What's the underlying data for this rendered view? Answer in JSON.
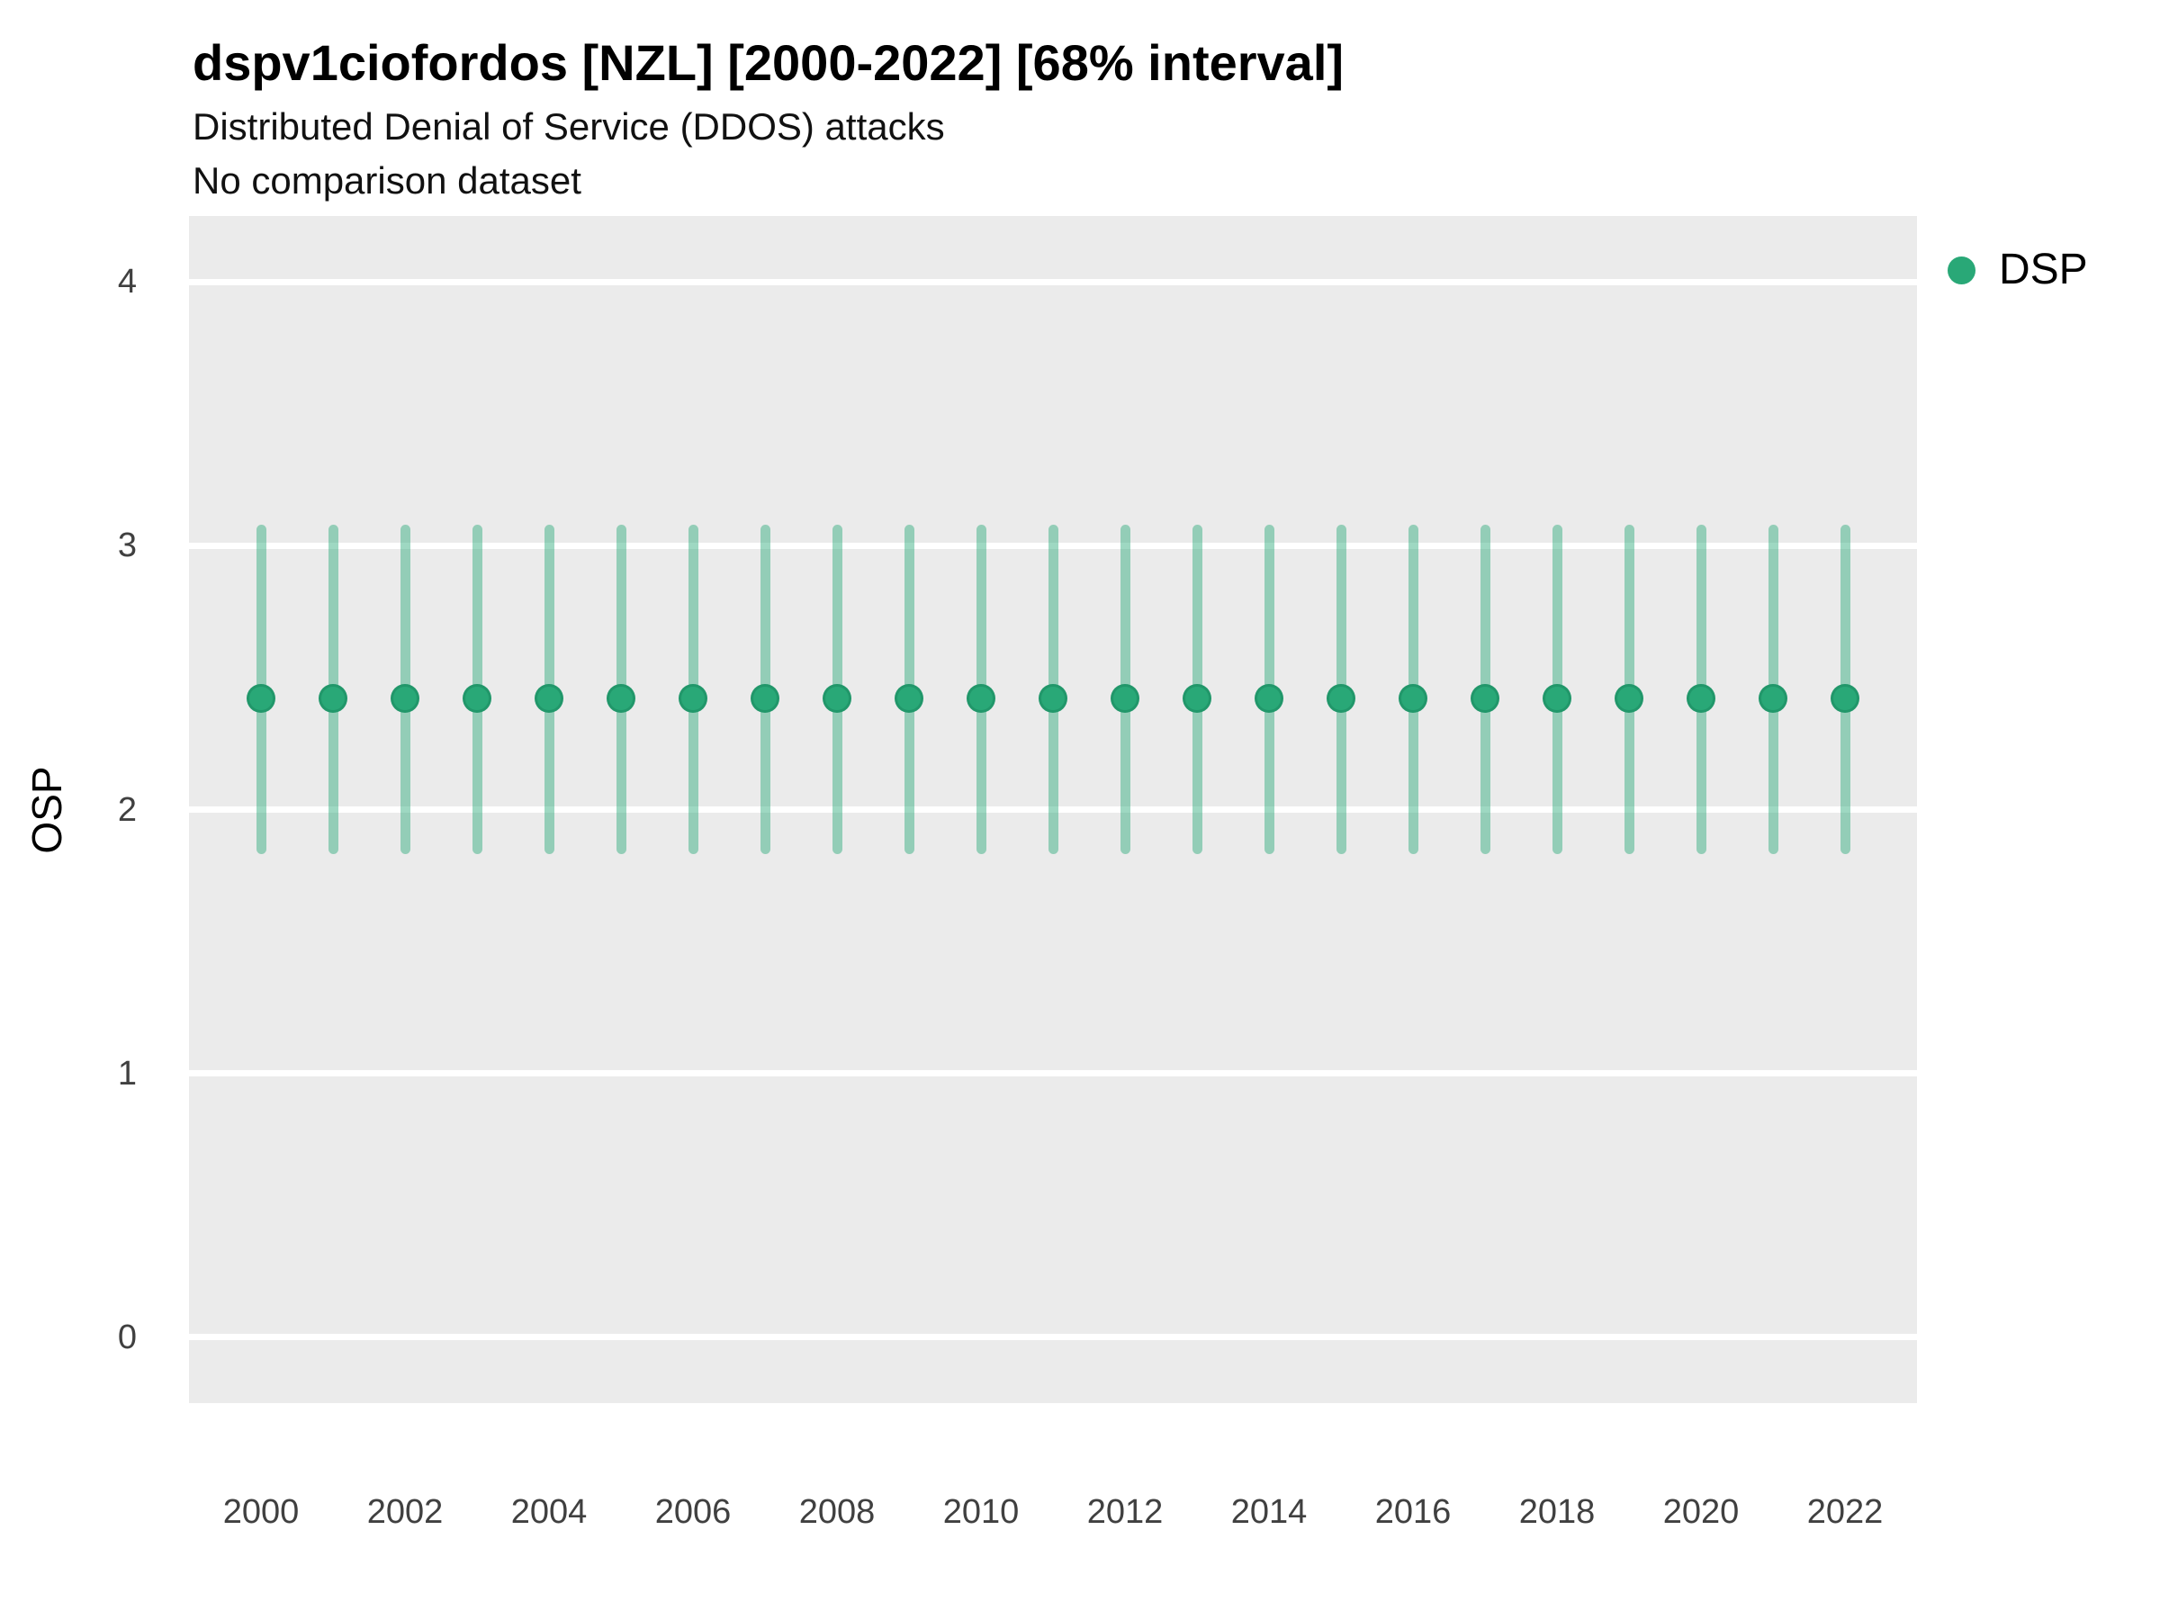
{
  "header": {
    "title": "dspv1ciofordos [NZL] [2000-2022] [68% interval]",
    "subtitle": "Distributed Denial of Service (DDOS) attacks",
    "note": "No comparison dataset"
  },
  "legend": {
    "items": [
      {
        "label": "DSP",
        "color": "#29A877"
      }
    ]
  },
  "chart_data": {
    "type": "scatter",
    "title": "dspv1ciofordos [NZL] [2000-2022] [68% interval]",
    "subtitle": "Distributed Denial of Service (DDOS) attacks",
    "note": "No comparison dataset",
    "interval_level": "68%",
    "xlabel": "",
    "ylabel": "OSP",
    "x": [
      2000,
      2001,
      2002,
      2003,
      2004,
      2005,
      2006,
      2007,
      2008,
      2009,
      2010,
      2011,
      2012,
      2013,
      2014,
      2015,
      2016,
      2017,
      2018,
      2019,
      2020,
      2021,
      2022
    ],
    "series": [
      {
        "name": "DSP",
        "values": [
          2.42,
          2.42,
          2.42,
          2.42,
          2.42,
          2.42,
          2.42,
          2.42,
          2.42,
          2.42,
          2.42,
          2.42,
          2.42,
          2.42,
          2.42,
          2.42,
          2.42,
          2.42,
          2.42,
          2.42,
          2.42,
          2.42,
          2.42
        ],
        "interval_low": [
          1.83,
          1.83,
          1.83,
          1.83,
          1.83,
          1.83,
          1.83,
          1.83,
          1.83,
          1.83,
          1.83,
          1.83,
          1.83,
          1.83,
          1.83,
          1.83,
          1.83,
          1.83,
          1.83,
          1.83,
          1.83,
          1.83,
          1.83
        ],
        "interval_high": [
          3.08,
          3.08,
          3.08,
          3.08,
          3.08,
          3.08,
          3.08,
          3.08,
          3.08,
          3.08,
          3.08,
          3.08,
          3.08,
          3.08,
          3.08,
          3.08,
          3.08,
          3.08,
          3.08,
          3.08,
          3.08,
          3.08,
          3.08
        ]
      }
    ],
    "x_ticks": [
      2000,
      2002,
      2004,
      2006,
      2008,
      2010,
      2012,
      2014,
      2016,
      2018,
      2020,
      2022
    ],
    "y_ticks": [
      0,
      1,
      2,
      3,
      4
    ],
    "ylim": [
      -0.25,
      4.25
    ],
    "grid": "horizontal-major",
    "legend_position": "right",
    "colors": {
      "point": "#29A877",
      "interval": "rgba(41,168,119,0.45)",
      "panel_background": "#EBEBEB",
      "gridline": "#FFFFFF",
      "tick_label": "#404040"
    }
  }
}
